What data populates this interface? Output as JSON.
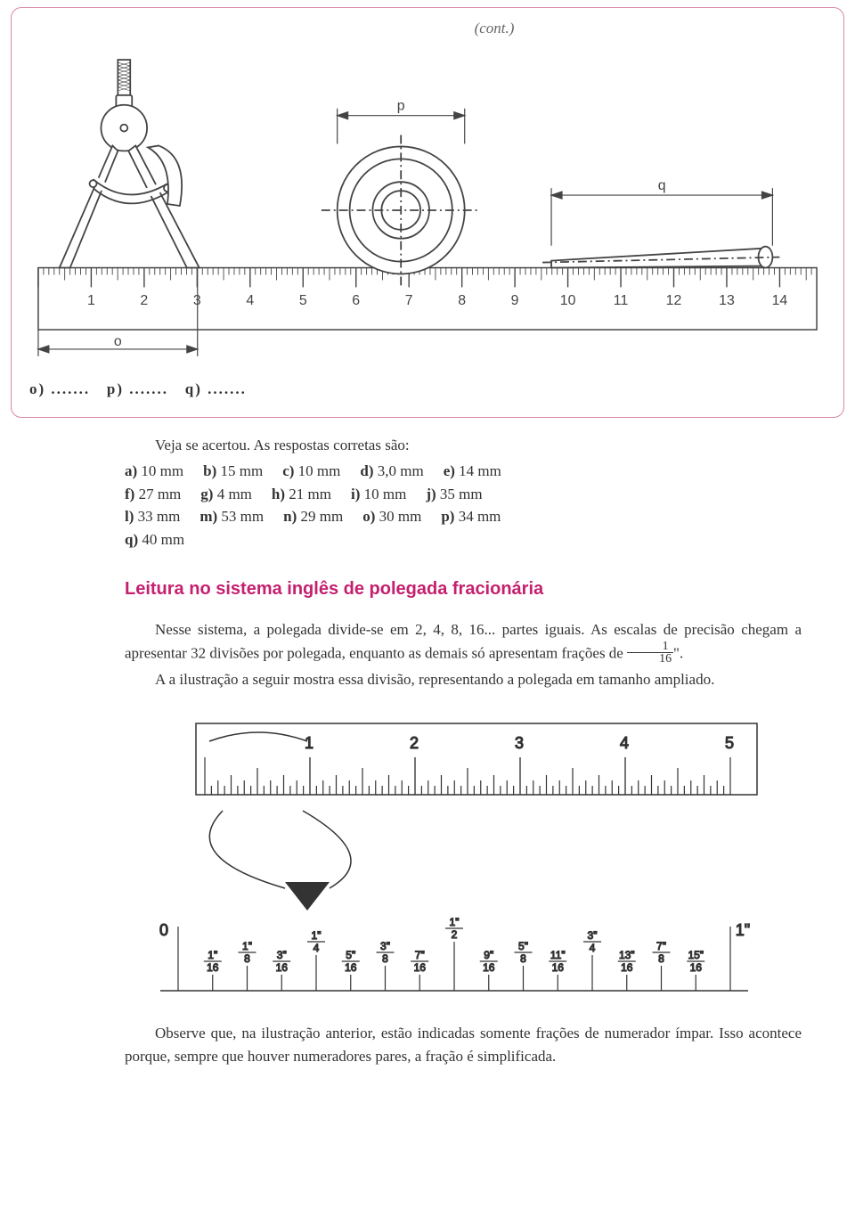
{
  "frame": {
    "cont_label": "(cont.)",
    "exercise": {
      "o": "o) .......",
      "p": "p) .......",
      "q": "q) ......."
    },
    "diagram": {
      "ruler_numbers": [
        "1",
        "2",
        "3",
        "4",
        "5",
        "6",
        "7",
        "8",
        "9",
        "10",
        "11",
        "12",
        "13",
        "14"
      ],
      "dim_p": "p",
      "dim_q": "q",
      "dim_o": "o",
      "ruler_stroke": "#444",
      "ruler_fill": "#ffffff"
    }
  },
  "answers": {
    "intro": "Veja se acertou. As respostas corretas são:",
    "rows": [
      [
        {
          "k": "a)",
          "v": "10 mm"
        },
        {
          "k": "b)",
          "v": "15 mm"
        },
        {
          "k": "c)",
          "v": "10 mm"
        },
        {
          "k": "d)",
          "v": "3,0 mm"
        },
        {
          "k": "e)",
          "v": "14 mm"
        }
      ],
      [
        {
          "k": "f)",
          "v": "27 mm"
        },
        {
          "k": "g)",
          "v": "4 mm"
        },
        {
          "k": "h)",
          "v": "21 mm"
        },
        {
          "k": "i)",
          "v": "10 mm"
        },
        {
          "k": "j)",
          "v": "35 mm"
        }
      ],
      [
        {
          "k": "l)",
          "v": "33 mm"
        },
        {
          "k": "m)",
          "v": "53 mm"
        },
        {
          "k": "n)",
          "v": "29 mm"
        },
        {
          "k": "o)",
          "v": "30 mm"
        },
        {
          "k": "p)",
          "v": "34 mm"
        }
      ],
      [
        {
          "k": "q)",
          "v": "40 mm"
        }
      ]
    ]
  },
  "section": {
    "title": "Leitura no sistema inglês de polegada fracionária",
    "p1_a": "Nesse sistema, a polegada divide-se em 2, 4, 8, 16... partes iguais. As escalas de precisão chegam a apresentar 32 divisões por polegada, enquanto as demais só apresentam frações de ",
    "p1_frac_n": "1",
    "p1_frac_d": "16",
    "p1_b": "\".",
    "p2": "A a ilustração a seguir mostra essa divisão, representando a polegada em tamanho ampliado.",
    "p3": "Observe que, na ilustração anterior, estão indicadas somente frações de numerador ímpar. Isso acontece porque, sempre que houver numeradores pares, a fração é simplificada."
  },
  "inch_diagram": {
    "top_numbers": [
      "1",
      "2",
      "3",
      "4",
      "5"
    ],
    "bottom": {
      "zero": "0",
      "one": "1\"",
      "fracs": [
        {
          "n": "1",
          "d": "16"
        },
        {
          "n": "1",
          "d": "8"
        },
        {
          "n": "3",
          "d": "16"
        },
        {
          "n": "1",
          "d": "4"
        },
        {
          "n": "5",
          "d": "16"
        },
        {
          "n": "3",
          "d": "8"
        },
        {
          "n": "7",
          "d": "16"
        },
        {
          "n": "1",
          "d": "2"
        },
        {
          "n": "9",
          "d": "16"
        },
        {
          "n": "5",
          "d": "8"
        },
        {
          "n": "11",
          "d": "16"
        },
        {
          "n": "3",
          "d": "4"
        },
        {
          "n": "13",
          "d": "16"
        },
        {
          "n": "7",
          "d": "8"
        },
        {
          "n": "15",
          "d": "16"
        }
      ]
    },
    "stroke": "#333"
  },
  "colors": {
    "accent": "#c4206f",
    "frame_border": "#d688a8",
    "text": "#333333"
  }
}
